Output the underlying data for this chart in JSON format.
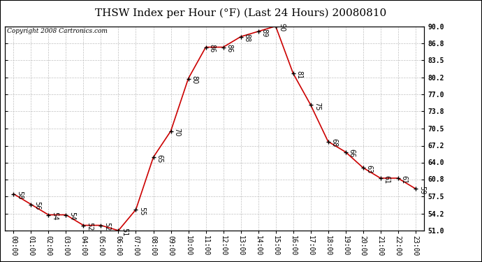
{
  "title": "THSW Index per Hour (°F) (Last 24 Hours) 20080810",
  "copyright": "Copyright 2008 Cartronics.com",
  "hours": [
    0,
    1,
    2,
    3,
    4,
    5,
    6,
    7,
    8,
    9,
    10,
    11,
    12,
    13,
    14,
    15,
    16,
    17,
    18,
    19,
    20,
    21,
    22,
    23
  ],
  "values": [
    58,
    56,
    54,
    54,
    52,
    52,
    51,
    55,
    65,
    70,
    80,
    86,
    86,
    88,
    89,
    90,
    81,
    75,
    68,
    66,
    63,
    61,
    61,
    59
  ],
  "x_labels": [
    "00:00",
    "01:00",
    "02:00",
    "03:00",
    "04:00",
    "05:00",
    "06:00",
    "07:00",
    "08:00",
    "09:00",
    "10:00",
    "11:00",
    "12:00",
    "13:00",
    "14:00",
    "15:00",
    "16:00",
    "17:00",
    "18:00",
    "19:00",
    "20:00",
    "21:00",
    "22:00",
    "23:00"
  ],
  "y_ticks": [
    51.0,
    54.2,
    57.5,
    60.8,
    64.0,
    67.2,
    70.5,
    73.8,
    77.0,
    80.2,
    83.5,
    86.8,
    90.0
  ],
  "ylim": [
    51.0,
    90.0
  ],
  "line_color": "#cc0000",
  "bg_color": "#ffffff",
  "grid_color": "#c0c0c0",
  "title_fontsize": 11,
  "label_fontsize": 7,
  "annotation_fontsize": 7,
  "copyright_fontsize": 6.5
}
